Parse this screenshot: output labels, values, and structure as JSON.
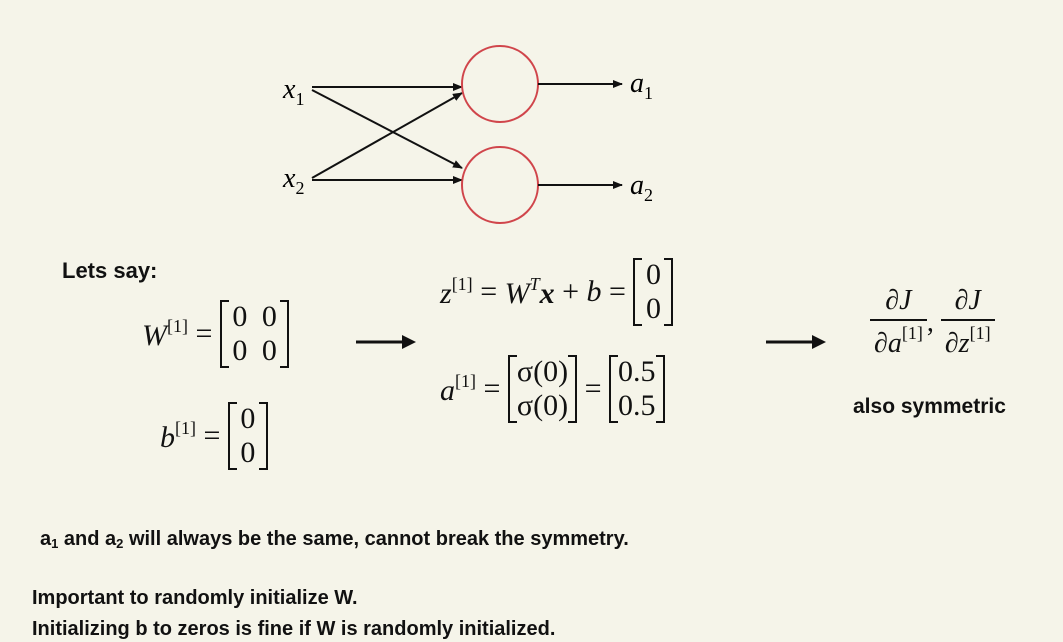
{
  "network": {
    "inputs": [
      {
        "base": "x",
        "sub": "1"
      },
      {
        "base": "x",
        "sub": "2"
      }
    ],
    "outputs": [
      {
        "base": "a",
        "sub": "1"
      },
      {
        "base": "a",
        "sub": "2"
      }
    ],
    "neuron_color": "#d0454b"
  },
  "lets_say": "Lets say:",
  "W": {
    "base": "W",
    "sup": "[1]",
    "equals": "=",
    "rows": [
      [
        "0",
        "0"
      ],
      [
        "0",
        "0"
      ]
    ]
  },
  "b": {
    "base": "b",
    "sup": "[1]",
    "equals": "=",
    "rows": [
      [
        "0"
      ],
      [
        "0"
      ]
    ]
  },
  "z_eq": {
    "z": "z",
    "z_sup": "[1]",
    "eq1": "=",
    "W": "W",
    "W_sup": "T",
    "x": "x",
    "plus": "+",
    "b": "b",
    "eq2": "=",
    "rows": [
      [
        "0"
      ],
      [
        "0"
      ]
    ]
  },
  "a_eq": {
    "a": "a",
    "a_sup": "[1]",
    "eq1": "=",
    "sigma_rows": [
      [
        "σ(0)"
      ],
      [
        "σ(0)"
      ]
    ],
    "eq2": "=",
    "value_rows": [
      [
        "0.5"
      ],
      [
        "0.5"
      ]
    ]
  },
  "grads": {
    "num1": "∂J",
    "den1": "∂a",
    "den1_sup": "[1]",
    "comma": ",",
    "num2": "∂J",
    "den2": "∂z",
    "den2_sup": "[1]"
  },
  "also_symmetric": "also symmetric",
  "sym_note": {
    "a1": "a",
    "s1": "1",
    "and": " and ",
    "a2": "a",
    "s2": "2",
    "rest": " will always be the same, cannot break the symmetry."
  },
  "important_line1": "Important to randomly initialize W.",
  "important_line2": "Initializing b to zeros is fine if W is randomly initialized."
}
